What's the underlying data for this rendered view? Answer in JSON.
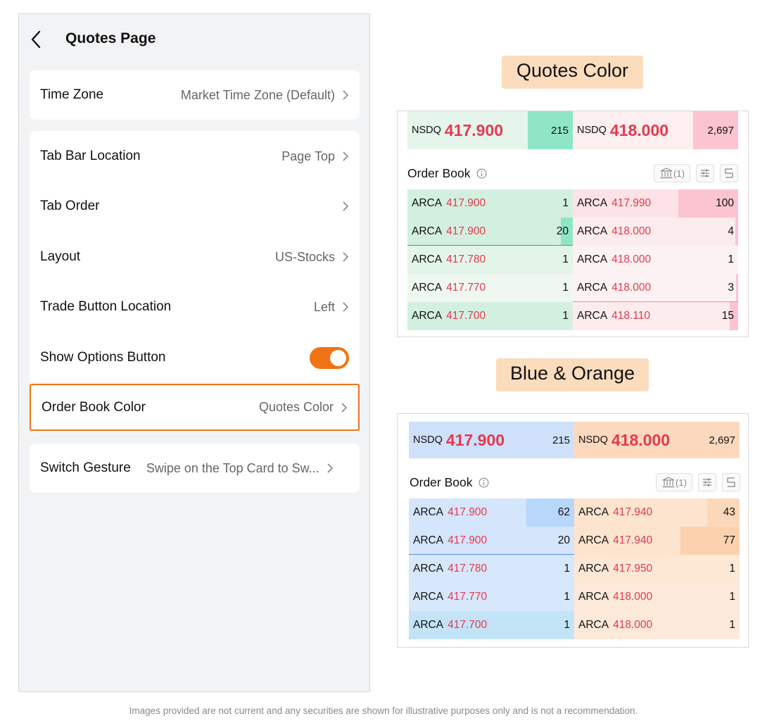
{
  "settings": {
    "title": "Quotes Page",
    "rows": [
      {
        "label": "Time Zone",
        "value": "Market Time Zone (Default)"
      },
      {
        "label": "Tab Bar Location",
        "value": "Page Top"
      },
      {
        "label": "Tab Order",
        "value": ""
      },
      {
        "label": "Layout",
        "value": "US-Stocks"
      },
      {
        "label": "Trade Button Location",
        "value": "Left"
      },
      {
        "label": "Show Options Button",
        "toggle": true
      },
      {
        "label": "Order Book Color",
        "value": "Quotes Color"
      },
      {
        "label": "Switch Gesture",
        "value": "Swipe on the Top Card to Sw..."
      }
    ]
  },
  "captions": {
    "quotes_color": "Quotes Color",
    "blue_orange": "Blue & Orange"
  },
  "orderbooks": [
    {
      "theme": "Quotes Color",
      "bid_top": {
        "exchange": "NSDQ",
        "price": "417.900",
        "qty": "215"
      },
      "ask_top": {
        "exchange": "NSDQ",
        "price": "418.000",
        "qty": "2,697"
      },
      "title": "Order Book",
      "bank_label": "(1)",
      "bids": [
        {
          "exchange": "ARCA",
          "price": "417.900",
          "qty": "1"
        },
        {
          "exchange": "ARCA",
          "price": "417.900",
          "qty": "20"
        },
        {
          "exchange": "ARCA",
          "price": "417.780",
          "qty": "1"
        },
        {
          "exchange": "ARCA",
          "price": "417.770",
          "qty": "1"
        },
        {
          "exchange": "ARCA",
          "price": "417.700",
          "qty": "1"
        }
      ],
      "asks": [
        {
          "exchange": "ARCA",
          "price": "417.990",
          "qty": "100"
        },
        {
          "exchange": "ARCA",
          "price": "418.000",
          "qty": "4"
        },
        {
          "exchange": "ARCA",
          "price": "418.000",
          "qty": "1"
        },
        {
          "exchange": "ARCA",
          "price": "418.000",
          "qty": "3"
        },
        {
          "exchange": "ARCA",
          "price": "418.110",
          "qty": "15"
        }
      ]
    },
    {
      "theme": "Blue & Orange",
      "bid_top": {
        "exchange": "NSDQ",
        "price": "417.900",
        "qty": "215"
      },
      "ask_top": {
        "exchange": "NSDQ",
        "price": "418.000",
        "qty": "2,697"
      },
      "title": "Order Book",
      "bank_label": "(1)",
      "bids": [
        {
          "exchange": "ARCA",
          "price": "417.900",
          "qty": "62"
        },
        {
          "exchange": "ARCA",
          "price": "417.900",
          "qty": "20"
        },
        {
          "exchange": "ARCA",
          "price": "417.780",
          "qty": "1"
        },
        {
          "exchange": "ARCA",
          "price": "417.770",
          "qty": "1"
        },
        {
          "exchange": "ARCA",
          "price": "417.700",
          "qty": "1"
        }
      ],
      "asks": [
        {
          "exchange": "ARCA",
          "price": "417.940",
          "qty": "43"
        },
        {
          "exchange": "ARCA",
          "price": "417.940",
          "qty": "77"
        },
        {
          "exchange": "ARCA",
          "price": "417.950",
          "qty": "1"
        },
        {
          "exchange": "ARCA",
          "price": "418.000",
          "qty": "1"
        },
        {
          "exchange": "ARCA",
          "price": "418.000",
          "qty": "1"
        }
      ]
    }
  ],
  "colors": {
    "accent": "#f07316",
    "price_red": "#e33a4f",
    "caption_bg": "#fbdcbd"
  },
  "disclaimer": "Images provided are not current and any securities are shown for illustrative purposes only and is not a recommendation."
}
